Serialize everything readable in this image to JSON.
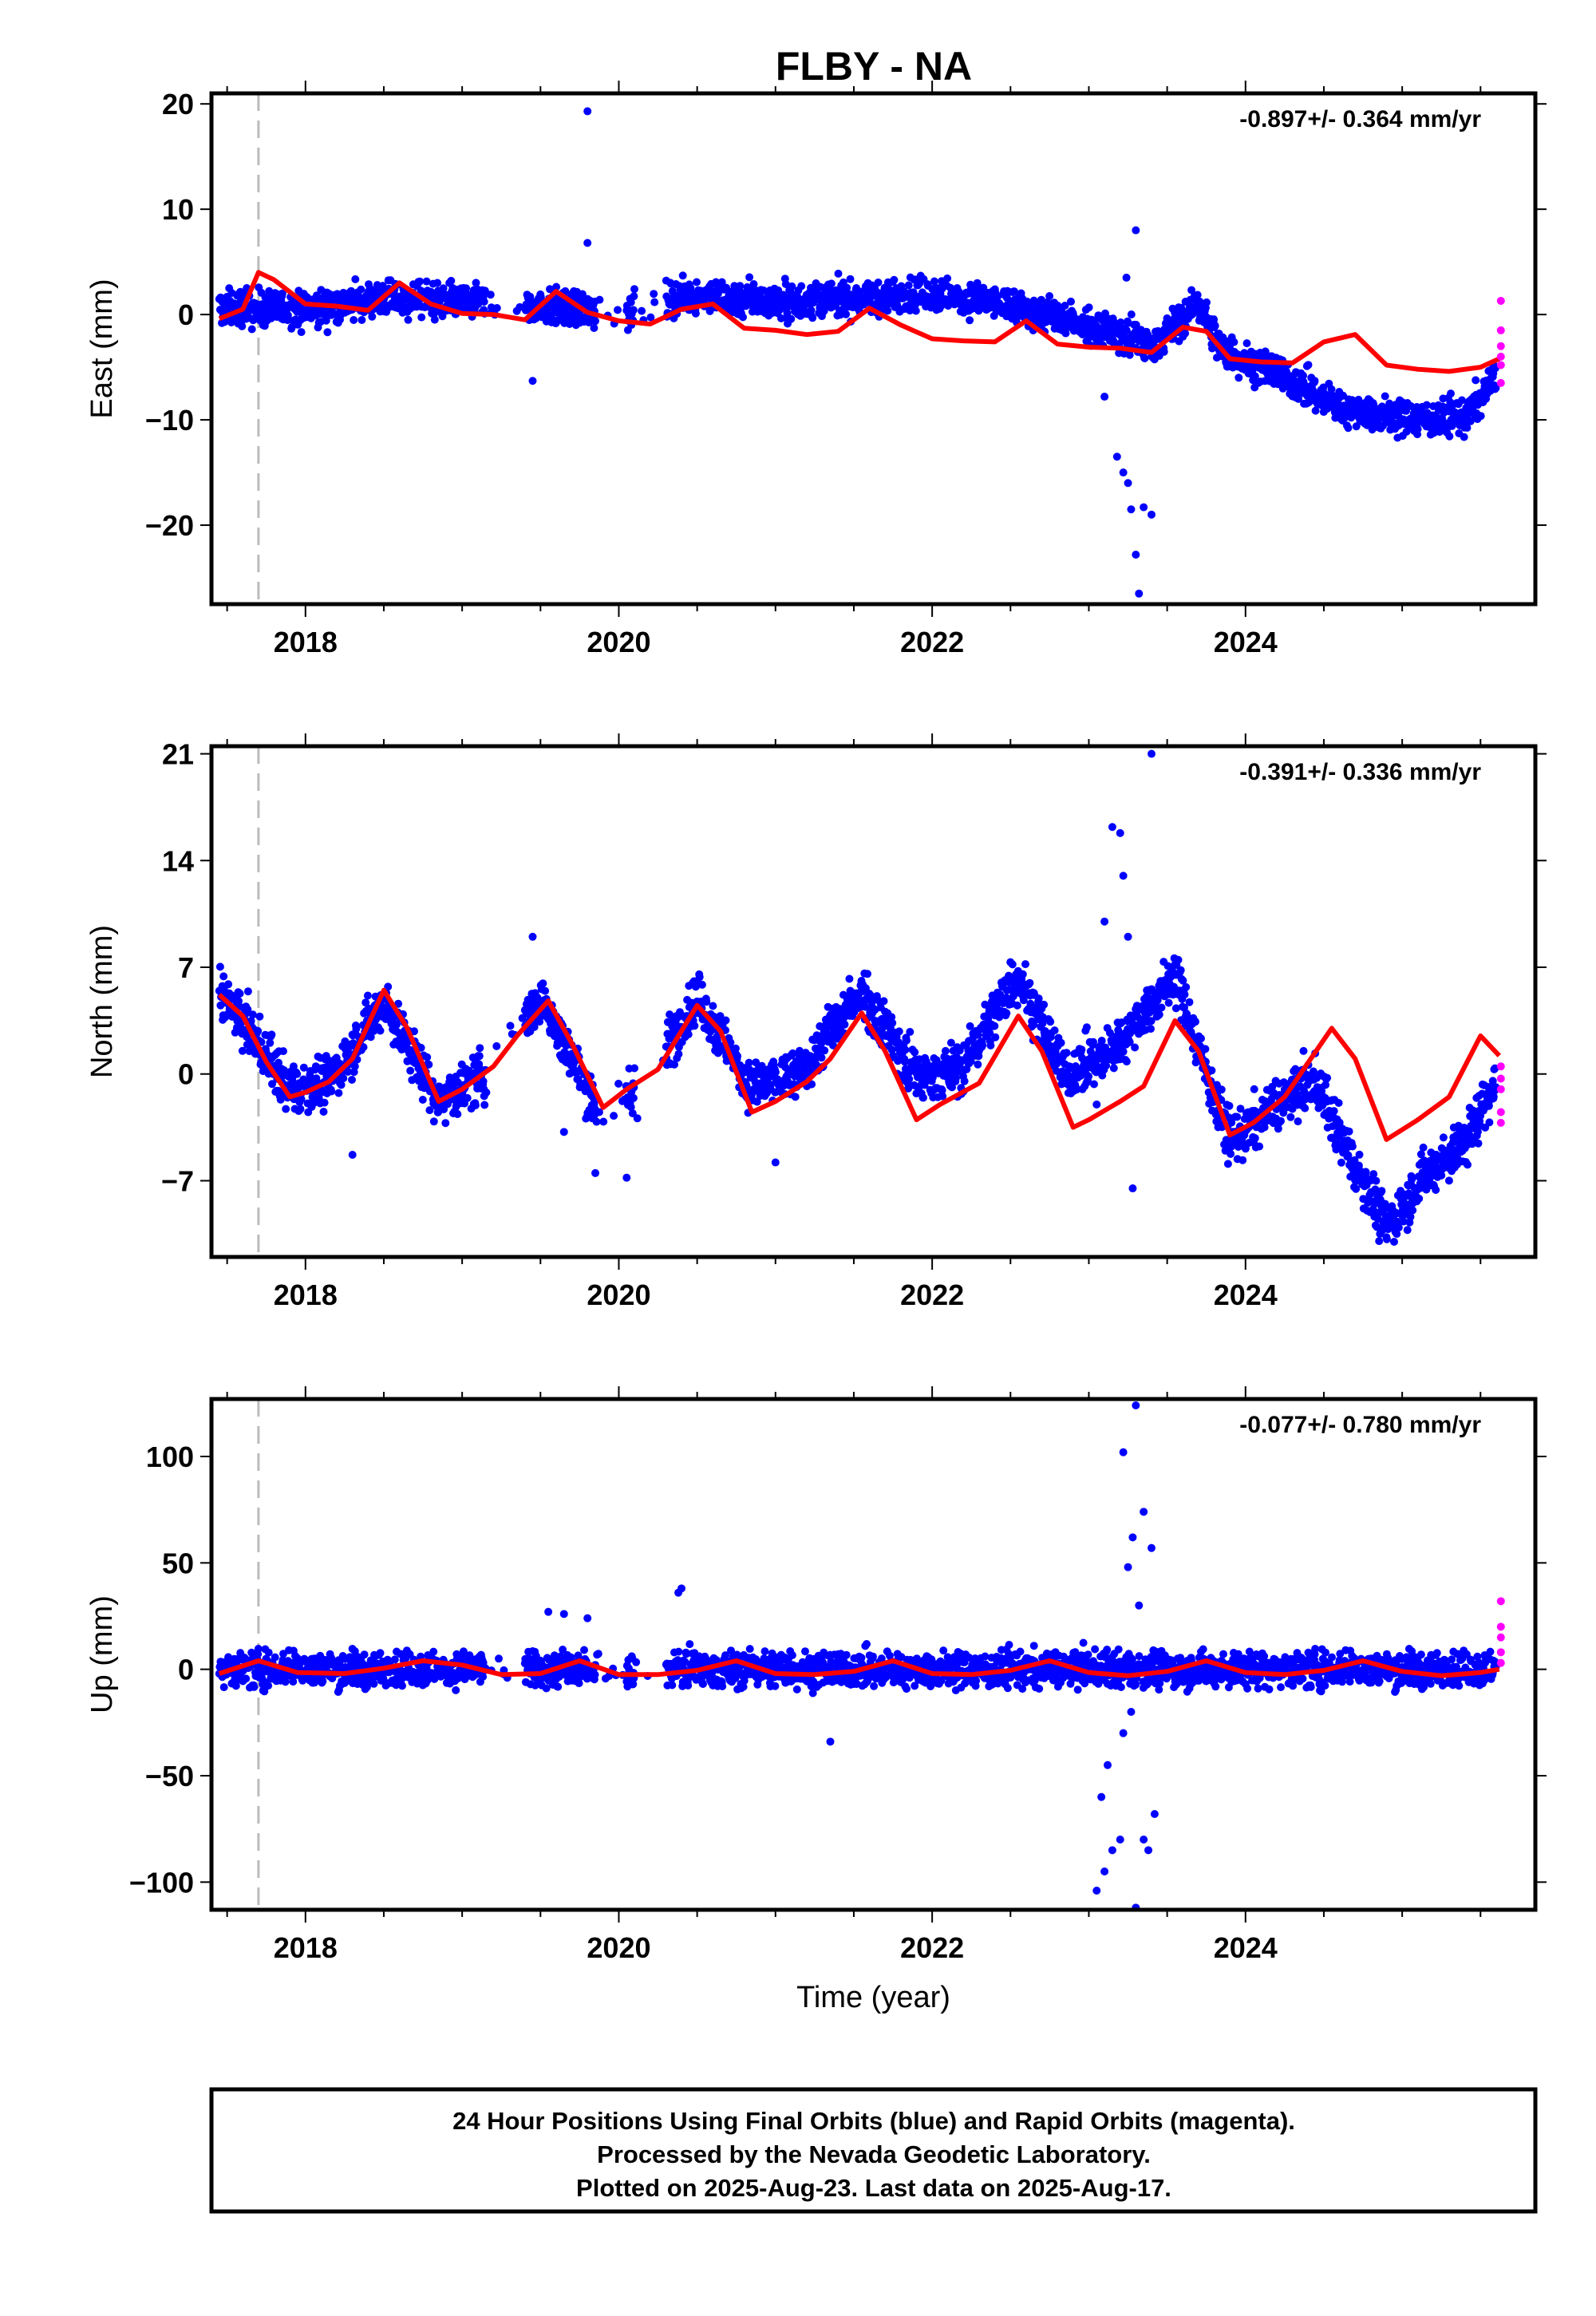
{
  "title": "FLBY - NA",
  "footer": {
    "line1": "24 Hour Positions Using Final Orbits (blue) and Rapid Orbits (magenta).",
    "line2": "Processed by the Nevada Geodetic Laboratory.",
    "line3": "Plotted on 2025-Aug-23. Last data on 2025-Aug-17."
  },
  "colors": {
    "final_orbits": "#0000ff",
    "rapid_orbits": "#ff00ff",
    "model": "#ff0000",
    "event_line": "#bbbbbb"
  },
  "chart_data": [
    {
      "type": "scatter",
      "component": "east",
      "ylabel": "East (mm)",
      "xlabel": "",
      "rate_label": "-0.897+/- 0.364 mm/yr",
      "xlim": [
        2017.4,
        2025.85
      ],
      "ylim": [
        -27.5,
        21
      ],
      "xticks": [
        2018,
        2020,
        2022,
        2024
      ],
      "xtick_labels": [
        "2018",
        "2020",
        "2022",
        "2024"
      ],
      "yticks": [
        20,
        10,
        0,
        -10,
        -20
      ],
      "ytick_labels": [
        "20",
        "10",
        "0",
        "−10",
        "−20"
      ],
      "event_x": 2017.7,
      "model": {
        "x": [
          2017.45,
          2017.6,
          2017.7,
          2017.8,
          2018.0,
          2018.2,
          2018.4,
          2018.6,
          2018.8,
          2019.0,
          2019.2,
          2019.4,
          2019.6,
          2019.8,
          2020.0,
          2020.2,
          2020.4,
          2020.6,
          2020.8,
          2021.0,
          2021.2,
          2021.4,
          2021.6,
          2021.8,
          2022.0,
          2022.2,
          2022.4,
          2022.6,
          2022.8,
          2023.0,
          2023.2,
          2023.4,
          2023.6,
          2023.75,
          2023.9,
          2024.1,
          2024.3,
          2024.5,
          2024.7,
          2024.9,
          2025.1,
          2025.3,
          2025.5,
          2025.62
        ],
        "y": [
          -0.4,
          0.5,
          4.0,
          3.3,
          1.0,
          0.8,
          0.4,
          3.0,
          1.0,
          0.1,
          0.0,
          -0.5,
          2.2,
          0.2,
          -0.6,
          -0.9,
          0.5,
          1.0,
          -1.3,
          -1.5,
          -1.9,
          -1.6,
          0.6,
          -1.0,
          -2.3,
          -2.5,
          -2.6,
          -0.6,
          -2.8,
          -3.1,
          -3.2,
          -3.6,
          -1.2,
          -1.6,
          -4.2,
          -4.5,
          -4.6,
          -2.6,
          -1.9,
          -4.8,
          -5.2,
          -5.4,
          -5.0,
          -4.2
        ]
      },
      "series": [
        {
          "name": "Final Orbits (blue)",
          "trend": [
            [
              2017.45,
              0.6
            ],
            [
              2018.0,
              0.5
            ],
            [
              2018.5,
              1.5
            ],
            [
              2019.0,
              1.2
            ],
            [
              2019.5,
              0.8
            ],
            [
              2020.0,
              0.2
            ],
            [
              2020.5,
              1.8
            ],
            [
              2021.0,
              1.2
            ],
            [
              2021.5,
              1.5
            ],
            [
              2022.0,
              2.0
            ],
            [
              2022.5,
              0.8
            ],
            [
              2023.0,
              -1.0
            ],
            [
              2023.4,
              -3.0
            ],
            [
              2023.7,
              1.0
            ],
            [
              2023.85,
              -3.5
            ],
            [
              2024.2,
              -5.5
            ],
            [
              2024.6,
              -8.8
            ],
            [
              2025.0,
              -9.8
            ],
            [
              2025.4,
              -9.8
            ],
            [
              2025.62,
              -5.5
            ]
          ],
          "spread": 1.2,
          "gaps": [
            [
              2019.15,
              2019.4
            ],
            [
              2019.85,
              2020.05
            ],
            [
              2020.1,
              2020.3
            ]
          ],
          "outliers": [
            [
              2019.8,
              19.3
            ],
            [
              2019.45,
              -6.3
            ],
            [
              2019.8,
              6.8
            ],
            [
              2023.3,
              8.0
            ],
            [
              2023.1,
              -7.8
            ],
            [
              2023.18,
              -13.5
            ],
            [
              2023.25,
              -16.0
            ],
            [
              2023.27,
              -18.5
            ],
            [
              2023.3,
              -22.8
            ],
            [
              2023.32,
              -26.5
            ],
            [
              2023.35,
              -18.3
            ],
            [
              2023.4,
              -19.0
            ],
            [
              2023.22,
              -15.0
            ],
            [
              2023.24,
              3.5
            ]
          ]
        },
        {
          "name": "Rapid Orbits (magenta)",
          "points": [
            [
              2025.63,
              1.3
            ],
            [
              2025.63,
              -1.5
            ],
            [
              2025.63,
              -3.0
            ],
            [
              2025.63,
              -4.0
            ],
            [
              2025.63,
              -4.8
            ],
            [
              2025.63,
              -6.5
            ]
          ]
        }
      ]
    },
    {
      "type": "scatter",
      "component": "north",
      "ylabel": "North (mm)",
      "xlabel": "",
      "rate_label": "-0.391+/- 0.336 mm/yr",
      "xlim": [
        2017.4,
        2025.85
      ],
      "ylim": [
        -12,
        21.5
      ],
      "xticks": [
        2018,
        2020,
        2022,
        2024
      ],
      "xtick_labels": [
        "2018",
        "2020",
        "2022",
        "2024"
      ],
      "yticks": [
        21,
        14,
        7,
        0,
        -7
      ],
      "ytick_labels": [
        "21",
        "14",
        "7",
        "0",
        "−7"
      ],
      "event_x": 2017.7,
      "model": {
        "x": [
          2017.45,
          2017.6,
          2017.75,
          2017.9,
          2018.0,
          2018.15,
          2018.3,
          2018.5,
          2018.65,
          2018.85,
          2019.0,
          2019.2,
          2019.35,
          2019.55,
          2019.7,
          2019.9,
          2020.05,
          2020.25,
          2020.5,
          2020.65,
          2020.85,
          2021.0,
          2021.2,
          2021.35,
          2021.55,
          2021.7,
          2021.9,
          2022.05,
          2022.3,
          2022.55,
          2022.7,
          2022.9,
          2023.0,
          2023.2,
          2023.35,
          2023.55,
          2023.7,
          2023.9,
          2024.05,
          2024.25,
          2024.55,
          2024.7,
          2024.9,
          2025.1,
          2025.3,
          2025.5,
          2025.62
        ],
        "y": [
          5.2,
          3.8,
          0.8,
          -1.5,
          -1.2,
          -0.5,
          1.0,
          5.5,
          3.0,
          -1.8,
          -1.0,
          0.5,
          2.5,
          4.8,
          2.0,
          -2.2,
          -1.0,
          0.3,
          4.5,
          2.8,
          -2.5,
          -1.8,
          -0.5,
          1.0,
          4.0,
          1.5,
          -3.0,
          -2.0,
          -0.6,
          3.8,
          1.5,
          -3.5,
          -3.0,
          -1.8,
          -0.8,
          3.5,
          1.5,
          -4.0,
          -3.2,
          -1.5,
          3.0,
          1.0,
          -4.3,
          -3.0,
          -1.5,
          2.5,
          1.2
        ]
      },
      "series": [
        {
          "name": "Final Orbits (blue)",
          "trend": [
            [
              2017.45,
              5.5
            ],
            [
              2017.7,
              2.0
            ],
            [
              2017.9,
              -1.0
            ],
            [
              2018.15,
              -0.5
            ],
            [
              2018.5,
              4.8
            ],
            [
              2018.85,
              -1.8
            ],
            [
              2019.15,
              0.0
            ],
            [
              2019.5,
              5.0
            ],
            [
              2019.9,
              -3.0
            ],
            [
              2020.2,
              0.0
            ],
            [
              2020.5,
              5.0
            ],
            [
              2020.85,
              -1.0
            ],
            [
              2021.15,
              0.0
            ],
            [
              2021.55,
              5.5
            ],
            [
              2021.9,
              -0.3
            ],
            [
              2022.2,
              0.5
            ],
            [
              2022.55,
              6.5
            ],
            [
              2022.85,
              0.0
            ],
            [
              2023.15,
              1.5
            ],
            [
              2023.55,
              6.5
            ],
            [
              2023.9,
              -4.5
            ],
            [
              2024.2,
              -2.0
            ],
            [
              2024.45,
              -0.5
            ],
            [
              2024.65,
              -5.0
            ],
            [
              2024.9,
              -10.0
            ],
            [
              2025.15,
              -6.5
            ],
            [
              2025.4,
              -4.5
            ],
            [
              2025.62,
              0.0
            ]
          ],
          "spread": 1.2,
          "gaps": [
            [
              2019.15,
              2019.4
            ],
            [
              2019.85,
              2020.05
            ],
            [
              2020.1,
              2020.3
            ]
          ],
          "outliers": [
            [
              2019.45,
              9.0
            ],
            [
              2019.65,
              -3.8
            ],
            [
              2019.85,
              -6.5
            ],
            [
              2020.05,
              -6.8
            ],
            [
              2021.0,
              -5.8
            ],
            [
              2018.3,
              -5.3
            ],
            [
              2023.4,
              21.0
            ],
            [
              2023.15,
              16.2
            ],
            [
              2023.2,
              15.8
            ],
            [
              2023.22,
              13.0
            ],
            [
              2023.1,
              10.0
            ],
            [
              2023.25,
              9.0
            ],
            [
              2023.28,
              -7.5
            ],
            [
              2022.8,
              2.0
            ],
            [
              2023.05,
              -2.0
            ]
          ]
        },
        {
          "name": "Rapid Orbits (magenta)",
          "points": [
            [
              2025.63,
              0.5
            ],
            [
              2025.63,
              -0.3
            ],
            [
              2025.63,
              -1.0
            ],
            [
              2025.63,
              -2.5
            ],
            [
              2025.63,
              -3.2
            ]
          ]
        }
      ]
    },
    {
      "type": "scatter",
      "component": "up",
      "ylabel": "Up (mm)",
      "xlabel": "Time (year)",
      "rate_label": "-0.077+/- 0.780 mm/yr",
      "xlim": [
        2017.4,
        2025.85
      ],
      "ylim": [
        -113,
        127
      ],
      "xticks": [
        2018,
        2020,
        2022,
        2024
      ],
      "xtick_labels": [
        "2018",
        "2020",
        "2022",
        "2024"
      ],
      "yticks": [
        100,
        50,
        0,
        -50,
        -100
      ],
      "ytick_labels": [
        "100",
        "50",
        "0",
        "−50",
        "−100"
      ],
      "event_x": 2017.7,
      "model": {
        "x": [
          2017.45,
          2017.7,
          2017.95,
          2018.25,
          2018.5,
          2018.75,
          2019.0,
          2019.25,
          2019.5,
          2019.75,
          2020.0,
          2020.25,
          2020.5,
          2020.75,
          2021.0,
          2021.25,
          2021.5,
          2021.75,
          2022.0,
          2022.25,
          2022.5,
          2022.75,
          2023.0,
          2023.25,
          2023.5,
          2023.75,
          2024.0,
          2024.25,
          2024.5,
          2024.75,
          2025.0,
          2025.25,
          2025.5,
          2025.62
        ],
        "y": [
          -2.0,
          4.0,
          -1.5,
          -2.0,
          0.5,
          4.0,
          2.0,
          -2.5,
          -2.0,
          4.0,
          -2.5,
          -2.5,
          -0.5,
          4.0,
          -2.0,
          -2.5,
          -1.0,
          4.0,
          -2.0,
          -2.5,
          -0.5,
          4.0,
          -1.5,
          -3.0,
          -1.0,
          4.0,
          -1.5,
          -2.5,
          -0.5,
          4.0,
          -1.0,
          -3.0,
          -1.5,
          0.0
        ]
      },
      "series": [
        {
          "name": "Final Orbits (blue)",
          "trend": [
            [
              2017.45,
              0.0
            ],
            [
              2018.0,
              0.0
            ],
            [
              2019.0,
              0.0
            ],
            [
              2020.0,
              0.0
            ],
            [
              2021.0,
              0.0
            ],
            [
              2022.0,
              0.0
            ],
            [
              2023.0,
              0.0
            ],
            [
              2024.0,
              0.0
            ],
            [
              2025.0,
              0.0
            ],
            [
              2025.62,
              0.0
            ]
          ],
          "spread": 6.0,
          "gaps": [
            [
              2019.15,
              2019.4
            ],
            [
              2019.85,
              2020.05
            ],
            [
              2020.1,
              2020.3
            ]
          ],
          "outliers": [
            [
              2019.55,
              27.0
            ],
            [
              2019.65,
              26.0
            ],
            [
              2019.8,
              24.0
            ],
            [
              2020.38,
              36.0
            ],
            [
              2020.4,
              38.0
            ],
            [
              2021.35,
              -34.0
            ],
            [
              2023.3,
              124.0
            ],
            [
              2023.22,
              102.0
            ],
            [
              2023.35,
              74.0
            ],
            [
              2023.4,
              57.0
            ],
            [
              2023.28,
              62.0
            ],
            [
              2023.25,
              48.0
            ],
            [
              2023.3,
              -112.0
            ],
            [
              2023.05,
              -104.0
            ],
            [
              2023.1,
              -95.0
            ],
            [
              2023.15,
              -85.0
            ],
            [
              2023.08,
              -60.0
            ],
            [
              2023.12,
              -45.0
            ],
            [
              2023.35,
              -80.0
            ],
            [
              2023.42,
              -68.0
            ],
            [
              2023.38,
              -85.0
            ],
            [
              2023.2,
              -80.0
            ],
            [
              2023.22,
              -30.0
            ],
            [
              2023.27,
              -20.0
            ],
            [
              2023.32,
              30.0
            ]
          ]
        },
        {
          "name": "Rapid Orbits (magenta)",
          "points": [
            [
              2025.63,
              32.0
            ],
            [
              2025.63,
              20.0
            ],
            [
              2025.63,
              15.0
            ],
            [
              2025.63,
              8.0
            ],
            [
              2025.63,
              3.0
            ]
          ]
        }
      ]
    }
  ]
}
